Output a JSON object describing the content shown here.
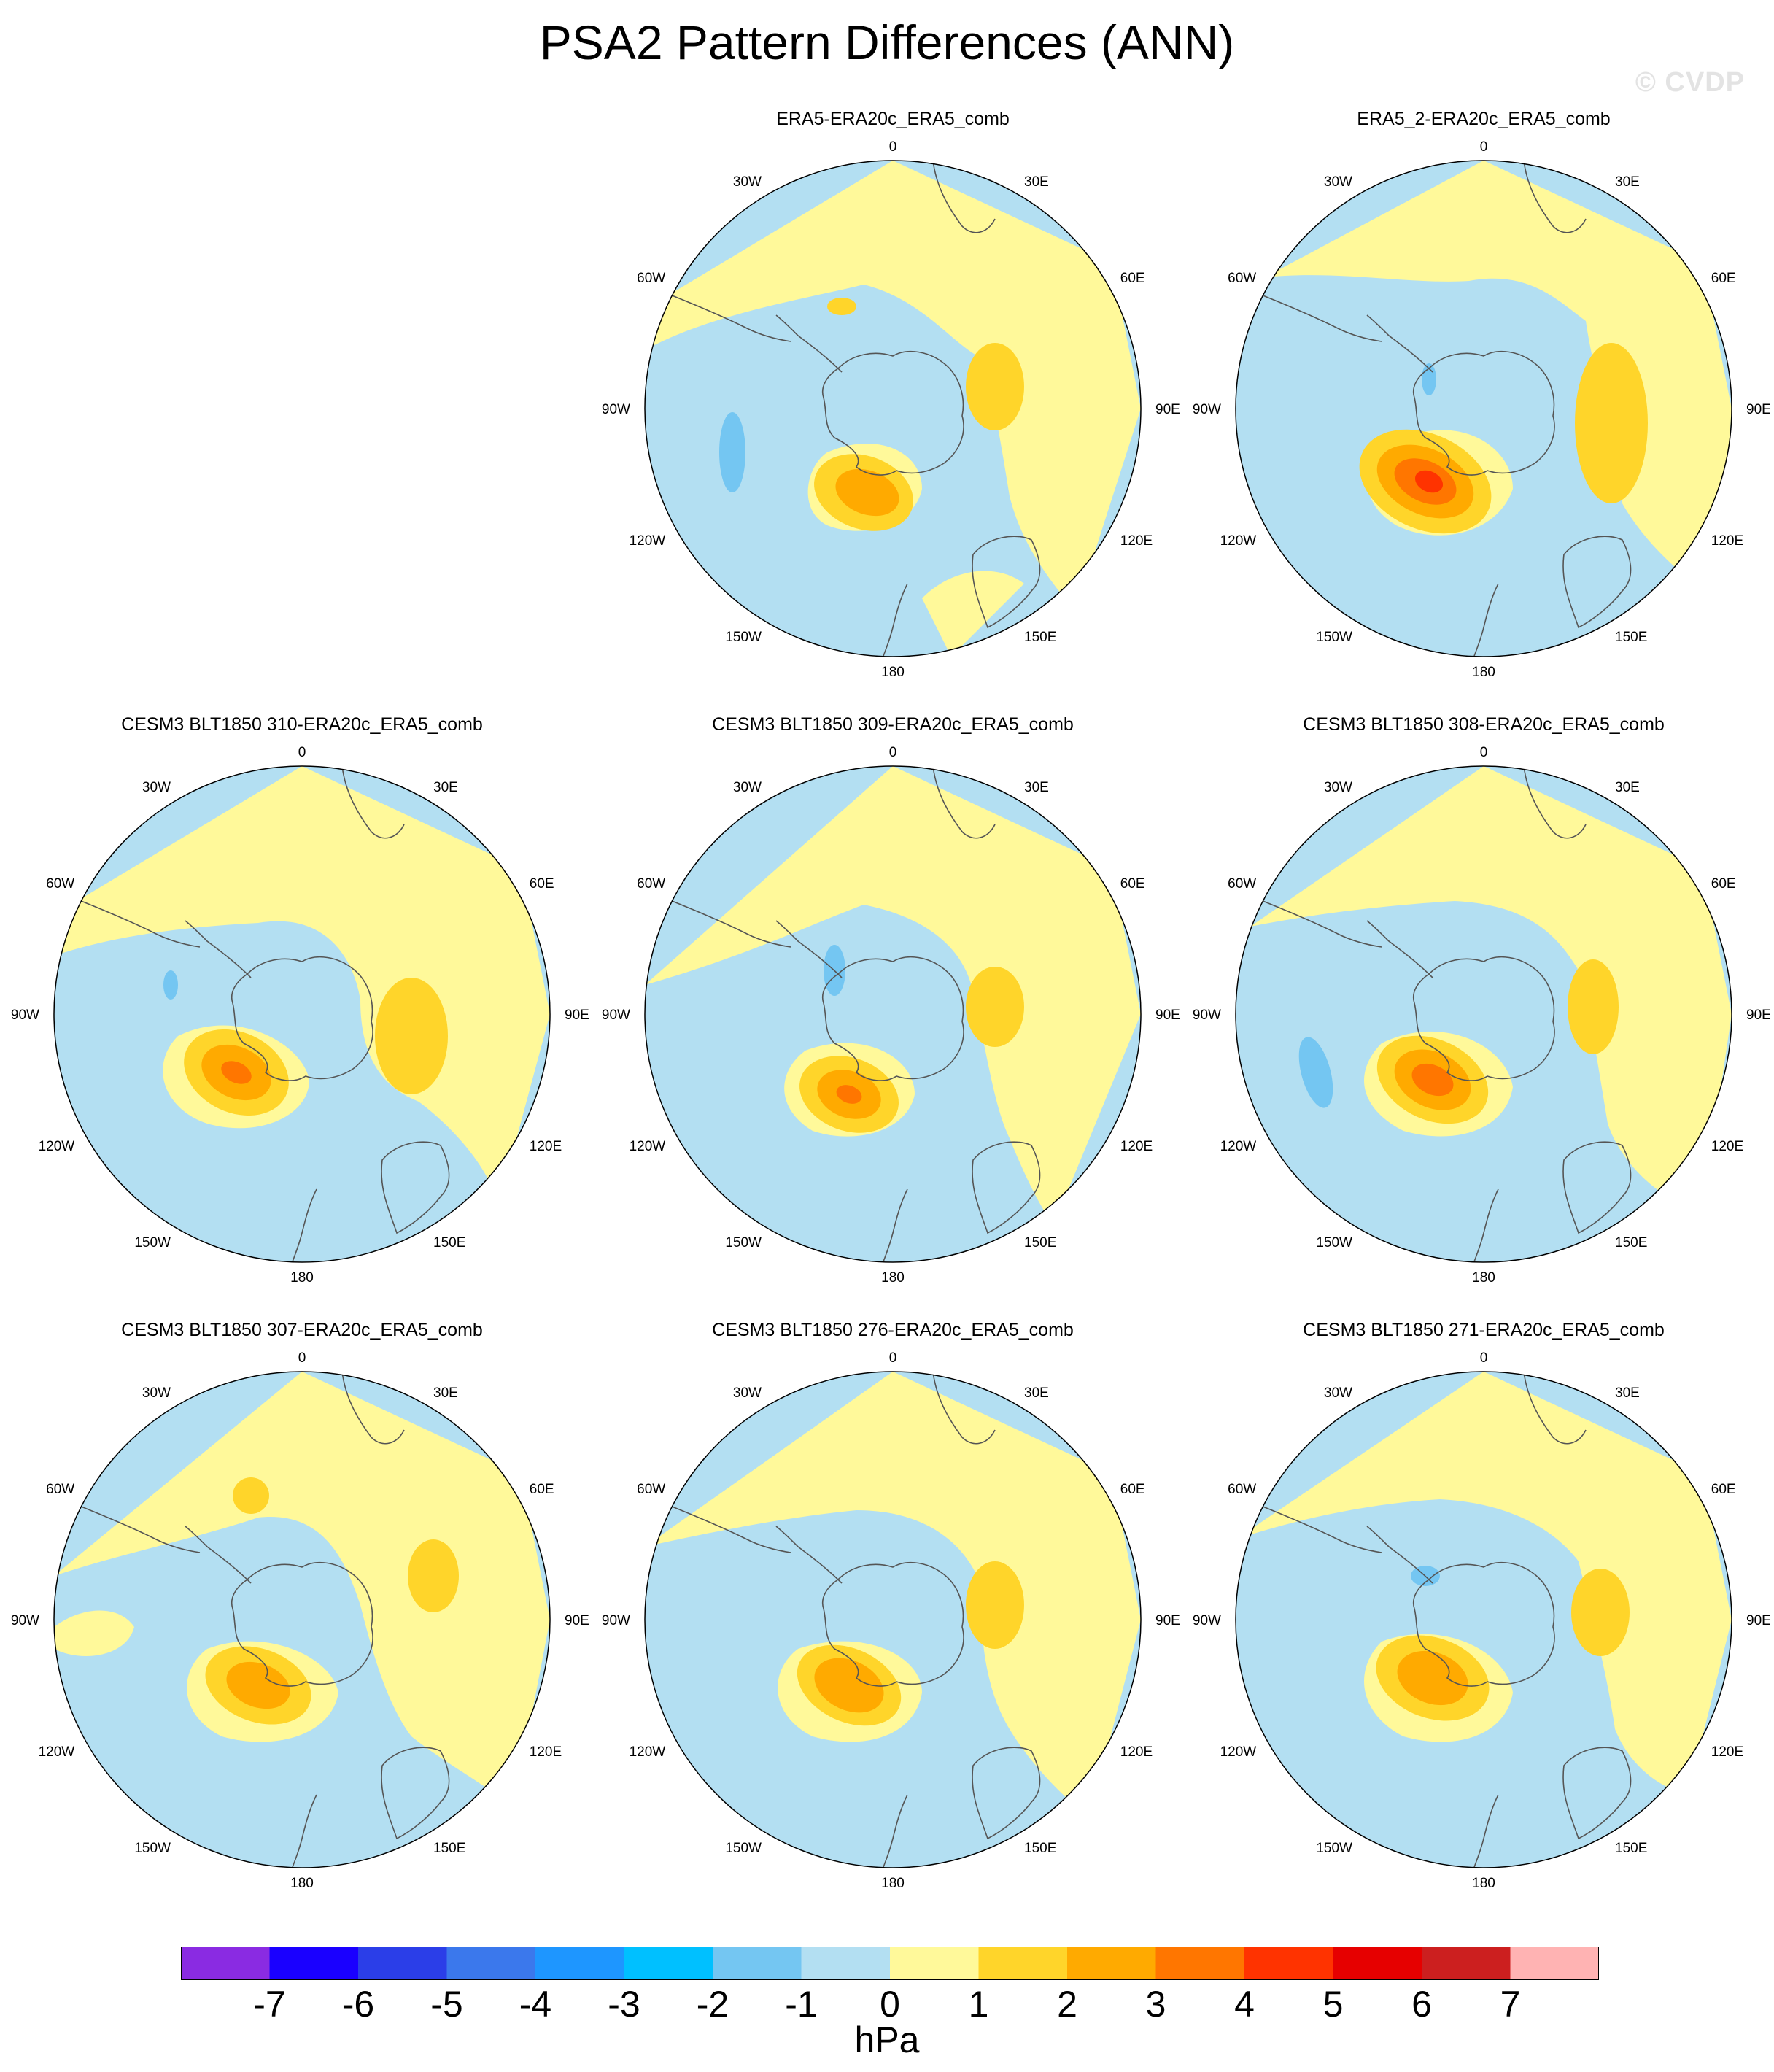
{
  "title": "PSA2 Pattern Differences (ANN)",
  "watermark": "© CVDP",
  "units": "hPa",
  "projection_labels": {
    "0": "0",
    "30E": "30E",
    "60E": "60E",
    "90E": "90E",
    "120E": "120E",
    "150E": "150E",
    "180": "180",
    "150W": "150W",
    "120W": "120W",
    "90W": "90W",
    "60W": "60W",
    "30W": "30W"
  },
  "colorbar": {
    "labels": [
      "-7",
      "-6",
      "-5",
      "-4",
      "-3",
      "-2",
      "-1",
      "0",
      "1",
      "2",
      "3",
      "4",
      "5",
      "6",
      "7"
    ],
    "colors": [
      "#8a2be2",
      "#1a00ff",
      "#2b3ee8",
      "#3b78ec",
      "#1e96ff",
      "#00c0ff",
      "#74c6f2",
      "#b3dff2",
      "#fff99a",
      "#ffd52a",
      "#ffaa00",
      "#ff7600",
      "#ff3300",
      "#e60000",
      "#cc1f1f",
      "#ffb3b3"
    ]
  },
  "panels": [
    {
      "title": "ERA5-ERA20c_ERA5_comb",
      "variant": 0
    },
    {
      "title": "ERA5_2-ERA20c_ERA5_comb",
      "variant": 1
    },
    {
      "title": "CESM3 BLT1850 310-ERA20c_ERA5_comb",
      "variant": 2
    },
    {
      "title": "CESM3 BLT1850 309-ERA20c_ERA5_comb",
      "variant": 3
    },
    {
      "title": "CESM3 BLT1850 308-ERA20c_ERA5_comb",
      "variant": 4
    },
    {
      "title": "CESM3 BLT1850 307-ERA20c_ERA5_comb",
      "variant": 5
    },
    {
      "title": "CESM3 BLT1850 276-ERA20c_ERA5_comb",
      "variant": 6
    },
    {
      "title": "CESM3 BLT1850 271-ERA20c_ERA5_comb",
      "variant": 7
    }
  ]
}
